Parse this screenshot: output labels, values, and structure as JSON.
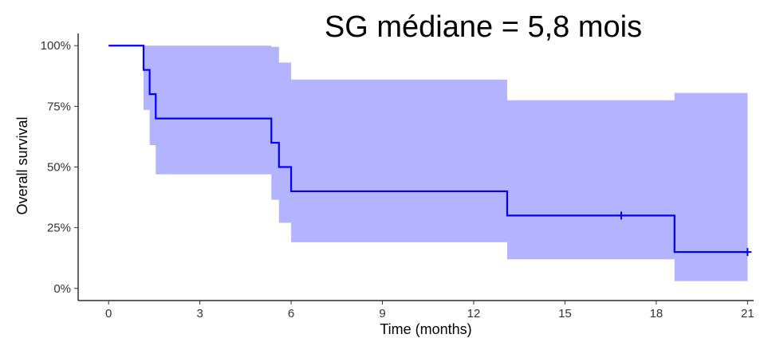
{
  "chart_data": {
    "type": "line",
    "title": "SG médiane = 5,8 mois",
    "xlabel": "Time (months)",
    "ylabel": "Overall survival",
    "xlim": [
      -1,
      21.2
    ],
    "ylim": [
      -0.05,
      1.05
    ],
    "x_ticks": [
      0,
      3,
      6,
      9,
      12,
      15,
      18,
      21
    ],
    "y_ticks": [
      0,
      0.25,
      0.5,
      0.75,
      1.0
    ],
    "y_tick_labels": [
      "0%",
      "25%",
      "50%",
      "75%",
      "100%"
    ],
    "grid": false,
    "colors": {
      "line": "#0000ff",
      "band": "#b3b3ff"
    },
    "series": [
      {
        "kind": "step",
        "x": [
          0,
          1.15,
          1.35,
          1.55,
          5.35,
          5.6,
          6.0,
          13.1,
          18.6,
          21.0
        ],
        "y": [
          1.0,
          0.9,
          0.8,
          0.7,
          0.6,
          0.5,
          0.4,
          0.3,
          0.15,
          0.15
        ]
      }
    ],
    "confidence_band": {
      "x": [
        0,
        1.15,
        1.35,
        1.55,
        5.35,
        5.6,
        6.0,
        13.1,
        18.6,
        21.0
      ],
      "lower": [
        1.0,
        0.735,
        0.59,
        0.47,
        0.365,
        0.27,
        0.19,
        0.12,
        0.03,
        0.03
      ],
      "upper": [
        1.0,
        1.0,
        1.0,
        1.0,
        0.995,
        0.93,
        0.86,
        0.775,
        0.805,
        0.805
      ]
    },
    "censored": [
      {
        "x": 16.85,
        "y": 0.3
      },
      {
        "x": 21.0,
        "y": 0.15
      }
    ]
  }
}
